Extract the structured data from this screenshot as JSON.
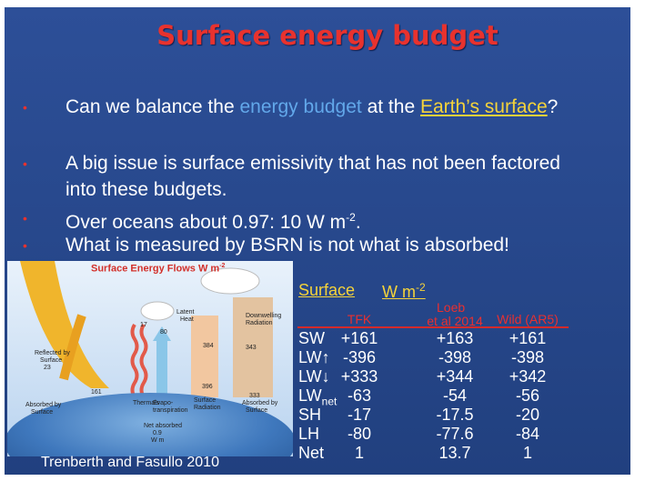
{
  "title": "Surface energy budget",
  "bullets": [
    [
      "Can we balance the ",
      "energy budget",
      " at the ",
      "Earth’s surface",
      "?"
    ],
    [
      "A big issue is surface emissivity that has not been factored into these budgets."
    ],
    [
      "Over oceans about 0.97:  10 W m",
      "-2",
      "."
    ],
    [
      "What is measured by BSRN is not what is absorbed!"
    ]
  ],
  "figure": {
    "title": "Surface Energy Flows W m",
    "title_sup": "-2",
    "labels": [
      "Reflected by",
      "Surface",
      "23",
      "161",
      "17",
      "80",
      "Latent",
      "Heat",
      "384",
      "343",
      "Downwelling",
      "Radiation",
      "396",
      "333",
      "Absorbed by",
      "Surface",
      "Thermals",
      "Evapo-",
      "transpiration",
      "Surface",
      "Radiation",
      "Absorbed by",
      "Surface",
      "Net absorbed",
      "0.9",
      "W m"
    ],
    "caption": "Trenberth and Fasullo 2010"
  },
  "table": {
    "title": "Surface",
    "units": "W m",
    "units_sup": "-2",
    "loeb_top": "Loeb",
    "columns": [
      "TFK",
      "et al 2014",
      "Wild (AR5)"
    ],
    "rows": [
      {
        "label": "SW",
        "cells": [
          "+161",
          "+163",
          "+161"
        ]
      },
      {
        "label": "LW↑",
        "cells": [
          "-396",
          "-398",
          "-398"
        ]
      },
      {
        "label": "LW↓",
        "cells": [
          "+333",
          "+344",
          "+342"
        ]
      },
      {
        "label": "LW",
        "label_sub": "net",
        "cells": [
          "-63",
          "-54",
          "-56"
        ]
      },
      {
        "label": "SH",
        "cells": [
          "-17",
          "-17.5",
          "-20"
        ]
      },
      {
        "label": "LH",
        "cells": [
          "-80",
          "-77.6",
          "-84"
        ]
      },
      {
        "label": "Net",
        "cells": [
          "1",
          "13.7",
          "1"
        ]
      }
    ]
  }
}
